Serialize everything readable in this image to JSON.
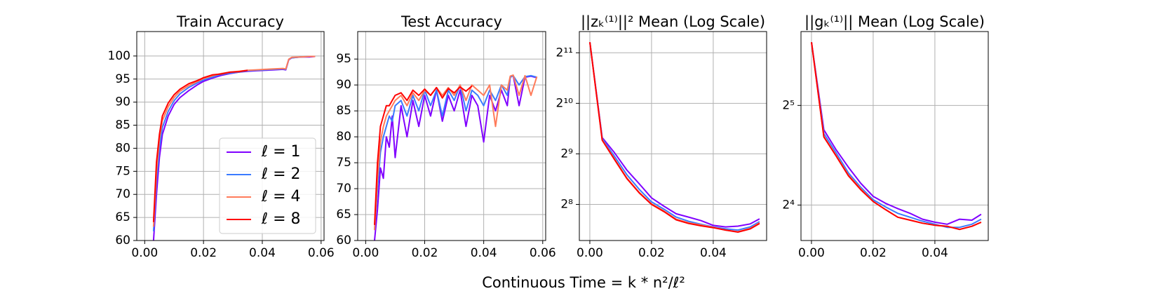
{
  "chart_data": [
    {
      "type": "line",
      "title": "Train Accuracy",
      "grid": true,
      "legend": "lower right",
      "xlim": [
        -0.0027,
        0.061
      ],
      "ylim": [
        60,
        105.3
      ],
      "xticks": [
        {
          "value": 0,
          "label": "0.00"
        },
        {
          "value": 0.02,
          "label": "0.02"
        },
        {
          "value": 0.04,
          "label": "0.04"
        },
        {
          "value": 0.06,
          "label": "0.06"
        }
      ],
      "yticks": [
        60,
        65,
        70,
        75,
        80,
        85,
        90,
        95,
        100
      ],
      "series": [
        {
          "name": "ℓ = 1",
          "color": "#8000ff",
          "x": [
            0.003,
            0.004,
            0.005,
            0.006,
            0.008,
            0.01,
            0.012,
            0.015,
            0.018,
            0.02,
            0.023,
            0.026,
            0.029,
            0.032,
            0.035,
            0.038,
            0.041,
            0.044,
            0.047,
            0.048,
            0.049,
            0.05,
            0.053,
            0.056,
            0.058
          ],
          "values": [
            60,
            70,
            78,
            83,
            87,
            89.5,
            91,
            92.5,
            93.8,
            94.5,
            95.2,
            95.8,
            96.2,
            96.5,
            96.7,
            96.8,
            96.9,
            97.0,
            97.1,
            97.0,
            99.2,
            99.6,
            99.8,
            99.8,
            99.9
          ]
        },
        {
          "name": "ℓ = 2",
          "color": "#3a7bff",
          "x": [
            0.003,
            0.004,
            0.005,
            0.006,
            0.008,
            0.01,
            0.012,
            0.015,
            0.018,
            0.02,
            0.023,
            0.026,
            0.029,
            0.032,
            0.035,
            0.038,
            0.041,
            0.044,
            0.047,
            0.048,
            0.049,
            0.05,
            0.053,
            0.056,
            0.058
          ],
          "values": [
            62,
            73,
            80,
            84.5,
            88,
            90.3,
            91.8,
            93.2,
            94.2,
            94.8,
            95.4,
            96.0,
            96.3,
            96.5,
            96.8,
            96.9,
            97.0,
            97.1,
            97.2,
            97.1,
            99.3,
            99.6,
            99.8,
            99.9,
            99.9
          ]
        },
        {
          "name": "ℓ = 4",
          "color": "#ff7b5a",
          "x": [
            0.003,
            0.004,
            0.005,
            0.006,
            0.008,
            0.01,
            0.012,
            0.015,
            0.018,
            0.02,
            0.023,
            0.026,
            0.029,
            0.032,
            0.035,
            0.038,
            0.041,
            0.044,
            0.047,
            0.048,
            0.049,
            0.05,
            0.053,
            0.056,
            0.058
          ],
          "values": [
            63,
            75,
            82,
            86,
            89,
            91,
            92.4,
            93.6,
            94.5,
            95.1,
            95.7,
            96.2,
            96.5,
            96.7,
            96.9,
            97.0,
            97.1,
            97.2,
            97.3,
            97.2,
            99.3,
            99.7,
            99.8,
            99.9,
            99.9
          ]
        },
        {
          "name": "ℓ = 8",
          "color": "#ff0000",
          "x": [
            0.003,
            0.004,
            0.005,
            0.006,
            0.008,
            0.01,
            0.012,
            0.015,
            0.018,
            0.02,
            0.023,
            0.026,
            0.029,
            0.032,
            0.035
          ],
          "values": [
            64,
            77,
            83,
            87,
            89.8,
            91.6,
            92.8,
            94.0,
            94.7,
            95.3,
            95.9,
            96.1,
            96.5,
            96.6,
            96.9
          ]
        }
      ]
    },
    {
      "type": "line",
      "title": "Test Accuracy",
      "grid": true,
      "xlim": [
        -0.0027,
        0.061
      ],
      "ylim": [
        60,
        100.3
      ],
      "xticks": [
        {
          "value": 0,
          "label": "0.00"
        },
        {
          "value": 0.02,
          "label": "0.02"
        },
        {
          "value": 0.04,
          "label": "0.04"
        },
        {
          "value": 0.06,
          "label": "0.06"
        }
      ],
      "yticks": [
        60,
        65,
        70,
        75,
        80,
        85,
        90,
        95
      ],
      "series": [
        {
          "name": "ℓ = 1",
          "color": "#8000ff",
          "x": [
            0.003,
            0.004,
            0.005,
            0.006,
            0.007,
            0.008,
            0.009,
            0.01,
            0.012,
            0.014,
            0.016,
            0.018,
            0.02,
            0.022,
            0.024,
            0.026,
            0.028,
            0.03,
            0.032,
            0.034,
            0.036,
            0.038,
            0.04,
            0.042,
            0.044,
            0.046,
            0.048,
            0.049,
            0.05,
            0.052,
            0.054,
            0.056,
            0.058
          ],
          "values": [
            60,
            66,
            74,
            72,
            80,
            78,
            84,
            76,
            86,
            80,
            87,
            82,
            88,
            84,
            89,
            83,
            88,
            85,
            89,
            82,
            88,
            86,
            79,
            88,
            85,
            89,
            86,
            91.5,
            91.8,
            86,
            91.5,
            91.7,
            91.4
          ]
        },
        {
          "name": "ℓ = 2",
          "color": "#3a7bff",
          "x": [
            0.003,
            0.004,
            0.005,
            0.006,
            0.007,
            0.008,
            0.009,
            0.01,
            0.012,
            0.014,
            0.016,
            0.018,
            0.02,
            0.022,
            0.024,
            0.026,
            0.028,
            0.03,
            0.032,
            0.034,
            0.036,
            0.038,
            0.04,
            0.042,
            0.044,
            0.046,
            0.048,
            0.049,
            0.05,
            0.052,
            0.054,
            0.056,
            0.058
          ],
          "values": [
            62,
            70,
            77,
            80,
            82,
            84,
            83,
            86,
            87,
            84,
            88,
            85,
            89,
            86,
            89,
            84,
            89,
            87,
            90,
            85,
            89,
            88,
            86,
            89,
            87,
            90,
            88,
            91.5,
            91.8,
            90,
            91.6,
            91.8,
            91.5
          ]
        },
        {
          "name": "ℓ = 4",
          "color": "#ff7b5a",
          "x": [
            0.003,
            0.004,
            0.005,
            0.006,
            0.007,
            0.008,
            0.009,
            0.01,
            0.012,
            0.014,
            0.016,
            0.018,
            0.02,
            0.022,
            0.024,
            0.026,
            0.028,
            0.03,
            0.032,
            0.034,
            0.036,
            0.038,
            0.04,
            0.042,
            0.044,
            0.046,
            0.048,
            0.049,
            0.05,
            0.052,
            0.054,
            0.056,
            0.058
          ],
          "values": [
            62,
            72,
            79,
            82,
            84,
            85,
            86,
            87,
            88,
            86,
            88.5,
            87,
            89,
            88,
            89.5,
            88,
            89.5,
            88,
            90,
            87,
            90,
            89,
            88,
            90,
            82,
            90,
            89,
            91.7,
            91.9,
            88,
            91.8,
            88,
            91.6
          ]
        },
        {
          "name": "ℓ = 8",
          "color": "#ff0000",
          "x": [
            0.003,
            0.004,
            0.005,
            0.006,
            0.007,
            0.008,
            0.009,
            0.01,
            0.012,
            0.014,
            0.016,
            0.018,
            0.02,
            0.022,
            0.024,
            0.026,
            0.028,
            0.03,
            0.032,
            0.034,
            0.036
          ],
          "values": [
            63,
            75,
            82,
            84,
            86,
            86,
            87,
            88,
            88.5,
            87,
            89,
            88,
            89.2,
            88,
            89.5,
            87.5,
            89.3,
            88.5,
            89.6,
            88.8,
            89.8
          ]
        }
      ]
    },
    {
      "type": "line",
      "title": "||zₖ⁽¹⁾||² Mean (Log Scale)",
      "grid": true,
      "log_base": 2,
      "xlim": [
        -0.0034,
        0.0573
      ],
      "ylim": [
        156,
        2740
      ],
      "xticks": [
        {
          "value": 0,
          "label": "0.00"
        },
        {
          "value": 0.02,
          "label": "0.02"
        },
        {
          "value": 0.04,
          "label": "0.04"
        }
      ],
      "yticks": [
        {
          "value": 256,
          "label": "2⁸"
        },
        {
          "value": 512,
          "label": "2⁹"
        },
        {
          "value": 1024,
          "label": "2¹⁰"
        },
        {
          "value": 2048,
          "label": "2¹¹"
        }
      ],
      "x": [
        0,
        0.004,
        0.008,
        0.012,
        0.016,
        0.02,
        0.024,
        0.028,
        0.032,
        0.036,
        0.04,
        0.044,
        0.048,
        0.052,
        0.055
      ],
      "series": [
        {
          "name": "ℓ = 1",
          "color": "#8000ff",
          "values": [
            2370,
            640,
            520,
            410,
            340,
            280,
            250,
            225,
            215,
            205,
            192,
            188,
            190,
            196,
            210
          ]
        },
        {
          "name": "ℓ = 2",
          "color": "#3a7bff",
          "values": [
            2370,
            630,
            495,
            385,
            315,
            265,
            240,
            215,
            203,
            195,
            188,
            183,
            180,
            188,
            202
          ]
        },
        {
          "name": "ℓ = 4",
          "color": "#ff7b5a",
          "values": [
            2370,
            620,
            478,
            368,
            302,
            258,
            234,
            209,
            199,
            193,
            187,
            180,
            176,
            184,
            199
          ]
        },
        {
          "name": "ℓ = 8",
          "color": "#ff0000",
          "values": [
            2370,
            617,
            474,
            365,
            300,
            256,
            232,
            207,
            197,
            191,
            186,
            180,
            175,
            183,
            197
          ]
        }
      ]
    },
    {
      "type": "line",
      "title": "||gₖ⁽¹⁾|| Mean (Log Scale)",
      "grid": true,
      "log_base": 2,
      "xlim": [
        -0.0034,
        0.0573
      ],
      "ylim": [
        12.5,
        53.5
      ],
      "xticks": [
        {
          "value": 0,
          "label": "0.00"
        },
        {
          "value": 0.02,
          "label": "0.02"
        },
        {
          "value": 0.04,
          "label": "0.04"
        }
      ],
      "yticks": [
        {
          "value": 16,
          "label": "2⁴"
        },
        {
          "value": 32,
          "label": "2⁵"
        }
      ],
      "x": [
        0,
        0.004,
        0.008,
        0.012,
        0.016,
        0.02,
        0.024,
        0.028,
        0.032,
        0.036,
        0.04,
        0.044,
        0.048,
        0.052,
        0.055
      ],
      "series": [
        {
          "name": "ℓ = 1",
          "color": "#8000ff",
          "values": [
            49.7,
            27.0,
            23.5,
            20.8,
            18.6,
            17.0,
            16.2,
            15.6,
            15.1,
            14.5,
            14.2,
            14.0,
            14.5,
            14.4,
            15.0
          ]
        },
        {
          "name": "ℓ = 2",
          "color": "#3a7bff",
          "values": [
            49.7,
            26.3,
            23.0,
            20.0,
            18.1,
            16.6,
            15.8,
            15.1,
            14.7,
            14.3,
            14.0,
            13.7,
            13.7,
            14.0,
            14.5
          ]
        },
        {
          "name": "ℓ = 4",
          "color": "#ff7b5a",
          "values": [
            49.7,
            25.8,
            22.6,
            19.7,
            17.9,
            16.4,
            15.5,
            14.7,
            14.4,
            14.1,
            13.9,
            13.8,
            13.5,
            13.8,
            14.2
          ]
        },
        {
          "name": "ℓ = 8",
          "color": "#ff0000",
          "values": [
            49.7,
            25.7,
            22.5,
            19.6,
            17.8,
            16.4,
            15.5,
            14.7,
            14.4,
            14.1,
            13.9,
            13.8,
            13.5,
            13.8,
            14.2
          ]
        }
      ]
    }
  ],
  "xlabel": "Continuous Time = k * n²/ℓ²"
}
